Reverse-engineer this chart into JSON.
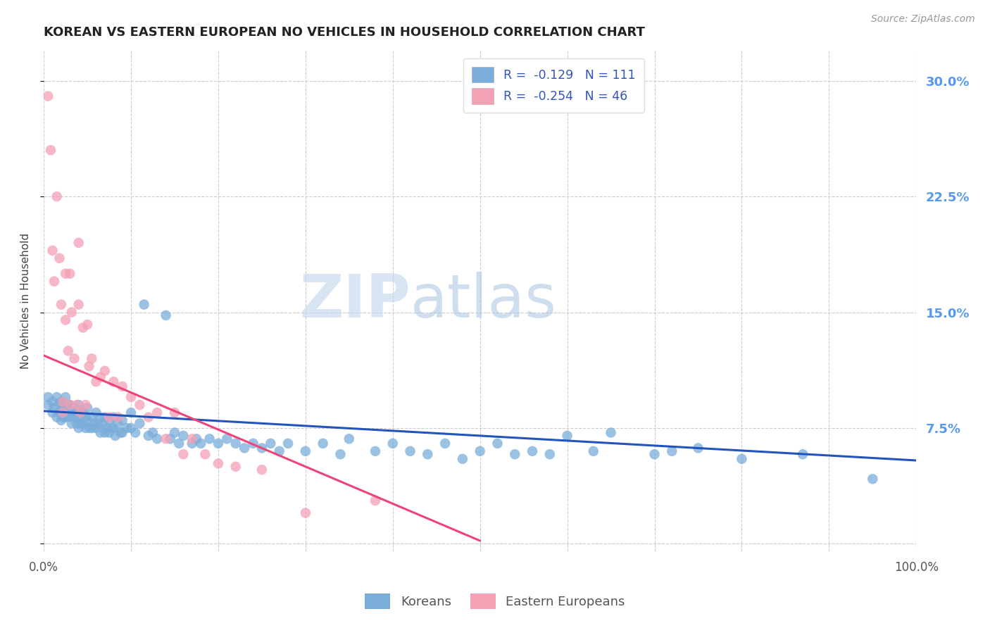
{
  "title": "KOREAN VS EASTERN EUROPEAN NO VEHICLES IN HOUSEHOLD CORRELATION CHART",
  "source": "Source: ZipAtlas.com",
  "ylabel": "No Vehicles in Household",
  "legend_korean": "Koreans",
  "legend_eastern": "Eastern Europeans",
  "r_korean": "-0.129",
  "n_korean": "111",
  "r_eastern": "-0.254",
  "n_eastern": "46",
  "xlim": [
    0.0,
    1.0
  ],
  "ylim": [
    -0.005,
    0.32
  ],
  "yticks": [
    0.0,
    0.075,
    0.15,
    0.225,
    0.3
  ],
  "ytick_labels": [
    "",
    "7.5%",
    "15.0%",
    "22.5%",
    "30.0%"
  ],
  "color_korean": "#7aadda",
  "color_eastern": "#f4a0b5",
  "line_korean": "#2255bb",
  "line_eastern": "#ee4477",
  "watermark_zip": "ZIP",
  "watermark_atlas": "atlas",
  "korean_x": [
    0.005,
    0.005,
    0.01,
    0.01,
    0.012,
    0.015,
    0.015,
    0.018,
    0.018,
    0.02,
    0.02,
    0.022,
    0.022,
    0.025,
    0.025,
    0.025,
    0.028,
    0.028,
    0.03,
    0.03,
    0.032,
    0.032,
    0.035,
    0.035,
    0.038,
    0.038,
    0.04,
    0.04,
    0.04,
    0.042,
    0.042,
    0.045,
    0.045,
    0.048,
    0.048,
    0.05,
    0.05,
    0.052,
    0.055,
    0.055,
    0.058,
    0.06,
    0.06,
    0.062,
    0.065,
    0.065,
    0.068,
    0.07,
    0.07,
    0.072,
    0.075,
    0.075,
    0.078,
    0.08,
    0.08,
    0.082,
    0.085,
    0.088,
    0.09,
    0.09,
    0.095,
    0.1,
    0.1,
    0.105,
    0.11,
    0.115,
    0.12,
    0.125,
    0.13,
    0.14,
    0.145,
    0.15,
    0.155,
    0.16,
    0.17,
    0.175,
    0.18,
    0.19,
    0.2,
    0.21,
    0.22,
    0.23,
    0.24,
    0.25,
    0.26,
    0.27,
    0.28,
    0.3,
    0.32,
    0.34,
    0.35,
    0.38,
    0.4,
    0.42,
    0.44,
    0.46,
    0.48,
    0.5,
    0.52,
    0.54,
    0.56,
    0.58,
    0.6,
    0.63,
    0.65,
    0.7,
    0.72,
    0.75,
    0.8,
    0.87,
    0.95
  ],
  "korean_y": [
    0.095,
    0.09,
    0.092,
    0.085,
    0.088,
    0.095,
    0.082,
    0.09,
    0.085,
    0.092,
    0.08,
    0.088,
    0.082,
    0.095,
    0.088,
    0.082,
    0.09,
    0.085,
    0.09,
    0.082,
    0.085,
    0.078,
    0.088,
    0.082,
    0.085,
    0.078,
    0.09,
    0.082,
    0.075,
    0.086,
    0.078,
    0.085,
    0.078,
    0.082,
    0.075,
    0.088,
    0.08,
    0.075,
    0.082,
    0.075,
    0.078,
    0.085,
    0.075,
    0.078,
    0.082,
    0.072,
    0.078,
    0.082,
    0.072,
    0.075,
    0.08,
    0.072,
    0.075,
    0.082,
    0.075,
    0.07,
    0.078,
    0.072,
    0.08,
    0.072,
    0.075,
    0.085,
    0.075,
    0.072,
    0.078,
    0.155,
    0.07,
    0.072,
    0.068,
    0.148,
    0.068,
    0.072,
    0.065,
    0.07,
    0.065,
    0.068,
    0.065,
    0.068,
    0.065,
    0.068,
    0.065,
    0.062,
    0.065,
    0.062,
    0.065,
    0.06,
    0.065,
    0.06,
    0.065,
    0.058,
    0.068,
    0.06,
    0.065,
    0.06,
    0.058,
    0.065,
    0.055,
    0.06,
    0.065,
    0.058,
    0.06,
    0.058,
    0.07,
    0.06,
    0.072,
    0.058,
    0.06,
    0.062,
    0.055,
    0.058,
    0.042
  ],
  "eastern_x": [
    0.005,
    0.008,
    0.01,
    0.012,
    0.015,
    0.018,
    0.02,
    0.022,
    0.022,
    0.025,
    0.025,
    0.028,
    0.03,
    0.03,
    0.032,
    0.035,
    0.038,
    0.04,
    0.04,
    0.042,
    0.045,
    0.048,
    0.05,
    0.052,
    0.055,
    0.06,
    0.065,
    0.07,
    0.075,
    0.08,
    0.085,
    0.09,
    0.1,
    0.11,
    0.12,
    0.13,
    0.14,
    0.15,
    0.16,
    0.17,
    0.185,
    0.2,
    0.22,
    0.25,
    0.3,
    0.38
  ],
  "eastern_y": [
    0.29,
    0.255,
    0.19,
    0.17,
    0.225,
    0.185,
    0.155,
    0.085,
    0.092,
    0.175,
    0.145,
    0.125,
    0.09,
    0.175,
    0.15,
    0.12,
    0.09,
    0.195,
    0.155,
    0.085,
    0.14,
    0.09,
    0.142,
    0.115,
    0.12,
    0.105,
    0.108,
    0.112,
    0.082,
    0.105,
    0.082,
    0.102,
    0.095,
    0.09,
    0.082,
    0.085,
    0.068,
    0.085,
    0.058,
    0.068,
    0.058,
    0.052,
    0.05,
    0.048,
    0.02,
    0.028
  ],
  "line_korean_x0": 0.0,
  "line_korean_x1": 1.0,
  "line_korean_y0": 0.086,
  "line_korean_y1": 0.054,
  "line_eastern_x0": 0.0,
  "line_eastern_x1": 0.5,
  "line_eastern_y0": 0.122,
  "line_eastern_y1": 0.002
}
